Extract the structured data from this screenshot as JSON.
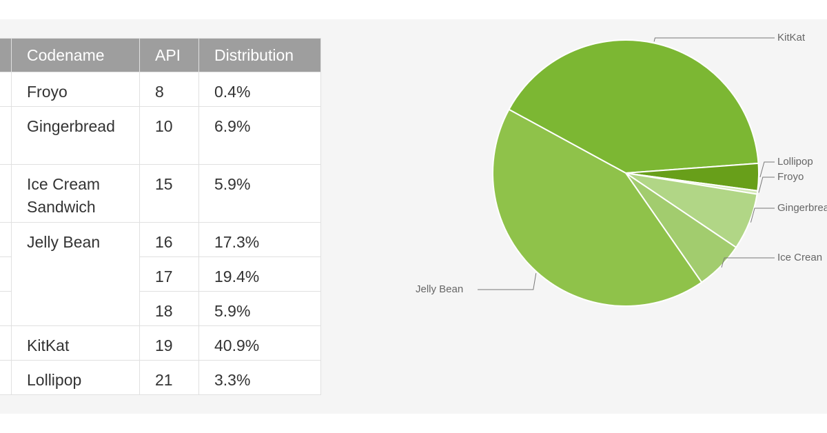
{
  "table": {
    "headers": [
      "",
      "Codename",
      "API",
      "Distribution"
    ],
    "rows": [
      {
        "codename": "Froyo",
        "api": "8",
        "distribution": "0.4%"
      },
      {
        "codename": "Gingerbread",
        "api": "10",
        "distribution": "6.9%"
      },
      {
        "codename": "Ice Cream\nSandwich",
        "api": "15",
        "distribution": "5.9%"
      },
      {
        "codename": "Jelly Bean",
        "api": "16",
        "distribution": "17.3%"
      },
      {
        "codename": "",
        "api": "17",
        "distribution": "19.4%"
      },
      {
        "codename": "",
        "api": "18",
        "distribution": "5.9%"
      },
      {
        "codename": "KitKat",
        "api": "19",
        "distribution": "40.9%"
      },
      {
        "codename": "Lollipop",
        "api": "21",
        "distribution": "3.3%"
      }
    ]
  },
  "chart_data": {
    "type": "pie",
    "title": "",
    "slices": [
      {
        "label": "KitKat",
        "value": 40.9,
        "color": "#7cb733"
      },
      {
        "label": "Lollipop",
        "value": 3.3,
        "color": "#689f1a"
      },
      {
        "label": "Froyo",
        "value": 0.4,
        "color": "#d3e8b7"
      },
      {
        "label": "Gingerbread",
        "value": 6.9,
        "color": "#b1d686"
      },
      {
        "label": "Ice Cream Sandwich",
        "value": 5.9,
        "color": "#a2cc6e"
      },
      {
        "label": "Jelly Bean",
        "value": 42.6,
        "color": "#8fc24a"
      }
    ],
    "label_texts": [
      "KitKat",
      "Lollipop",
      "Froyo",
      "Gingerbrea",
      "Ice Crean",
      "Jelly Bean"
    ]
  }
}
